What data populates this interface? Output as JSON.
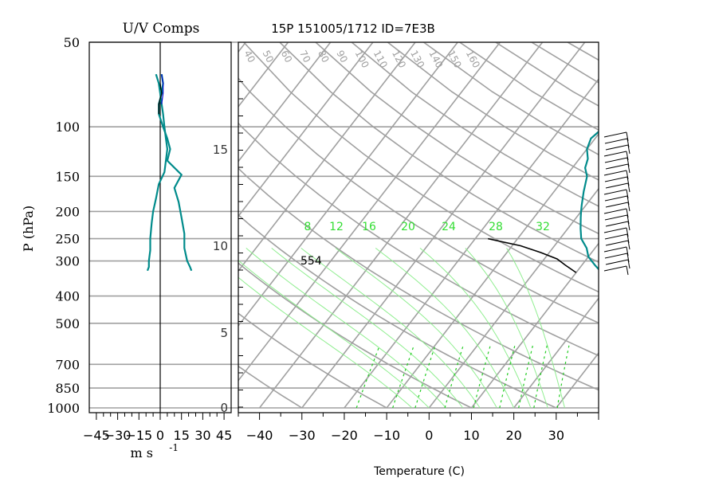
{
  "chart_data": [
    {
      "type": "line",
      "title": "U/V Comps",
      "xlabel": "m s",
      "xlabel_exponent": "-1",
      "ylabel": "P (hPa)",
      "xlim": [
        -50,
        50
      ],
      "y_scale": "log",
      "ylim": [
        1000,
        50
      ],
      "x_ticks": [
        -45,
        -30,
        -15,
        0,
        15,
        30,
        45
      ],
      "y_ticks": [
        1000,
        850,
        700,
        500,
        400,
        300,
        250,
        200,
        150,
        100,
        50
      ],
      "grid": true,
      "series": [
        {
          "color": "#008b8b",
          "values": [
            [
              -3,
              65
            ],
            [
              -1,
              70
            ],
            [
              0,
              76
            ],
            [
              1,
              83
            ],
            [
              2,
              90
            ],
            [
              3,
              100
            ],
            [
              4,
              110
            ],
            [
              5,
              120
            ],
            [
              4,
              132
            ],
            [
              3,
              145
            ],
            [
              -1,
              160
            ],
            [
              -3,
              180
            ],
            [
              -5,
              200
            ],
            [
              -6,
              220
            ],
            [
              -7,
              250
            ],
            [
              -7,
              275
            ],
            [
              -8,
              300
            ],
            [
              -8,
              315
            ],
            [
              -9,
              325
            ]
          ]
        },
        {
          "color": "#008b8b",
          "values": [
            [
              1,
              65
            ],
            [
              2,
              70
            ],
            [
              1,
              76
            ],
            [
              -1,
              83
            ],
            [
              -1,
              90
            ],
            [
              2,
              100
            ],
            [
              5,
              110
            ],
            [
              7,
              120
            ],
            [
              5,
              132
            ],
            [
              15,
              148
            ],
            [
              10,
              165
            ],
            [
              13,
              185
            ],
            [
              15,
              210
            ],
            [
              17,
              240
            ],
            [
              17,
              270
            ],
            [
              19,
              300
            ],
            [
              21,
              315
            ],
            [
              22,
              325
            ]
          ]
        },
        {
          "color": "#000000",
          "values": [
            [
              0,
              70
            ],
            [
              1,
              76
            ],
            [
              -1,
              83
            ],
            [
              -1,
              90
            ]
          ]
        },
        {
          "color": "#0000cc",
          "values": [
            [
              1,
              65
            ],
            [
              2,
              70
            ],
            [
              2,
              76
            ],
            [
              1,
              83
            ]
          ]
        }
      ]
    },
    {
      "type": "line",
      "title": "15P 151005/1712 ID=7E3B",
      "xlabel": "Temperature (C)",
      "xlim": [
        -45,
        40
      ],
      "x_ticks": [
        -40,
        -30,
        -20,
        -10,
        0,
        10,
        20,
        30
      ],
      "y2_ticks": [
        0,
        5,
        10,
        15
      ],
      "y_scale": "log",
      "ylim": [
        1000,
        50
      ],
      "grid": true,
      "annotations": [
        "554"
      ],
      "mixing_ratio_labels": [
        "8",
        "12",
        "16",
        "20",
        "24",
        "28",
        "32"
      ],
      "isotherm_labels": [
        "40",
        "50",
        "60",
        "70",
        "80",
        "90",
        "100",
        "110",
        "120",
        "130",
        "140",
        "150",
        "160"
      ],
      "series": [
        {
          "color": "#000000",
          "values": [
            [
              15.5,
              60
            ],
            [
              5,
              70
            ],
            [
              -3,
              80
            ],
            [
              -7,
              90
            ],
            [
              -10,
              100
            ],
            [
              -11,
              110
            ],
            [
              -10,
              120
            ],
            [
              -8,
              130
            ],
            [
              -7,
              140
            ],
            [
              -5,
              150
            ],
            [
              -3,
              170
            ],
            [
              -1,
              190
            ],
            [
              0,
              200
            ],
            [
              1,
              210
            ],
            [
              3,
              230
            ],
            [
              5,
              250
            ],
            [
              8,
              270
            ],
            [
              10,
              290
            ],
            [
              13,
              310
            ],
            [
              16,
              330
            ]
          ]
        },
        {
          "color": "#008b8b",
          "values": [
            [
              5,
              78
            ],
            [
              -3,
              82
            ],
            [
              -7,
              90
            ],
            [
              -10,
              100
            ],
            [
              -11,
              110
            ],
            [
              -10,
              120
            ],
            [
              -8,
              130
            ],
            [
              -7,
              140
            ],
            [
              -5,
              150
            ],
            [
              -3,
              170
            ],
            [
              -1,
              190
            ],
            [
              0,
              200
            ],
            [
              1,
              210
            ],
            [
              3,
              230
            ],
            [
              5,
              250
            ],
            [
              8,
              270
            ],
            [
              10,
              290
            ],
            [
              13,
              310
            ],
            [
              16,
              330
            ]
          ]
        },
        {
          "color": "#000000",
          "values": [
            [
              -17,
              250
            ],
            [
              -8,
              265
            ],
            [
              -2,
              280
            ],
            [
              3,
              295
            ],
            [
              6,
              310
            ],
            [
              10,
              330
            ]
          ]
        }
      ]
    }
  ]
}
